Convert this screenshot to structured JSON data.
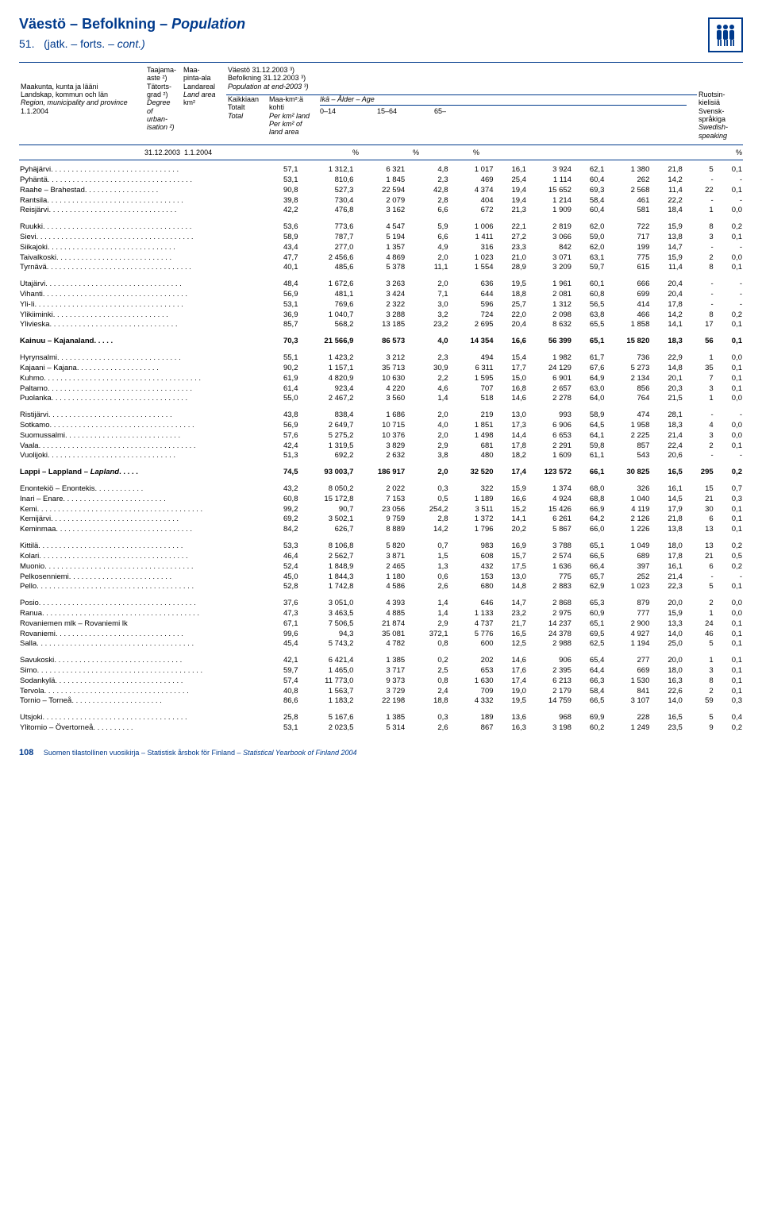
{
  "header": {
    "title_fi": "Väestö",
    "title_sv": "Befolkning",
    "title_en": "Population",
    "sub_num": "51.",
    "sub_fi": "(jatk.",
    "sub_sv": "forts.",
    "sub_en": "cont.)",
    "dash": "–"
  },
  "col_headers": {
    "left1": "Maakunta, kunta ja lääni",
    "left2": "Landskap, kommun och län",
    "left3": "Region, municipality and province",
    "left4": "1.1.2004",
    "c2_1": "Taajama-",
    "c2_2": "aste ²)",
    "c2_3": "Tätorts-",
    "c2_4": "grad ²)",
    "c2_5": "Degree",
    "c2_6": "of",
    "c2_7": "urban-",
    "c2_8": "isation ²)",
    "c3_1": "Maa-",
    "c3_2": "pinta-ala",
    "c3_3": "Landareal",
    "c3_4": "Land area",
    "c3_5": "km²",
    "c4_top1": "Väestö 31.12.2003 ³)",
    "c4_top2": "Befolkning 31.12.2003 ³)",
    "c4_top3": "Population at end-2003 ³)",
    "c4_1": "Kaikkiaan",
    "c4_2": "Totalt",
    "c4_3": "Total",
    "c5_1": "Maa-km²:ä",
    "c5_2": "kohti",
    "c5_3": "Per km² land",
    "c5_4": "Per km² of",
    "c5_5": "land area",
    "age_label": "Ikä – Ålder – Age",
    "age_0": "0–14",
    "age_15": "15–64",
    "age_65": "65–",
    "right_1": "Ruotsin-",
    "right_2": "kielisiä",
    "right_3": "Svensk-",
    "right_4": "språkiga",
    "right_5": "Swedish-",
    "right_6": "speaking",
    "date_left": "31.12.2003",
    "date_right": "1.1.2004",
    "pct": "%"
  },
  "colwidths": [
    "155",
    "38",
    "52",
    "48",
    "40",
    "42",
    "30",
    "42",
    "30",
    "42",
    "30",
    "28",
    "26"
  ],
  "blocks": [
    {
      "rows": [
        {
          "name": "Pyhäjärvi",
          "v": [
            "57,1",
            "1 312,1",
            "6 321",
            "4,8",
            "1 017",
            "16,1",
            "3 924",
            "62,1",
            "1 380",
            "21,8",
            "5",
            "0,1"
          ]
        },
        {
          "name": "Pyhäntä",
          "v": [
            "53,1",
            "810,6",
            "1 845",
            "2,3",
            "469",
            "25,4",
            "1 114",
            "60,4",
            "262",
            "14,2",
            "-",
            "-"
          ]
        },
        {
          "name": "Raahe – Brahestad",
          "v": [
            "90,8",
            "527,3",
            "22 594",
            "42,8",
            "4 374",
            "19,4",
            "15 652",
            "69,3",
            "2 568",
            "11,4",
            "22",
            "0,1"
          ]
        },
        {
          "name": "Rantsila",
          "v": [
            "39,8",
            "730,4",
            "2 079",
            "2,8",
            "404",
            "19,4",
            "1 214",
            "58,4",
            "461",
            "22,2",
            "-",
            "-"
          ]
        },
        {
          "name": "Reisjärvi",
          "v": [
            "42,2",
            "476,8",
            "3 162",
            "6,6",
            "672",
            "21,3",
            "1 909",
            "60,4",
            "581",
            "18,4",
            "1",
            "0,0"
          ]
        }
      ]
    },
    {
      "rows": [
        {
          "name": "Ruukki",
          "v": [
            "53,6",
            "773,6",
            "4 547",
            "5,9",
            "1 006",
            "22,1",
            "2 819",
            "62,0",
            "722",
            "15,9",
            "8",
            "0,2"
          ]
        },
        {
          "name": "Sievi",
          "v": [
            "58,9",
            "787,7",
            "5 194",
            "6,6",
            "1 411",
            "27,2",
            "3 066",
            "59,0",
            "717",
            "13,8",
            "3",
            "0,1"
          ]
        },
        {
          "name": "Siikajoki",
          "v": [
            "43,4",
            "277,0",
            "1 357",
            "4,9",
            "316",
            "23,3",
            "842",
            "62,0",
            "199",
            "14,7",
            "-",
            "-"
          ]
        },
        {
          "name": "Taivalkoski",
          "v": [
            "47,7",
            "2 456,6",
            "4 869",
            "2,0",
            "1 023",
            "21,0",
            "3 071",
            "63,1",
            "775",
            "15,9",
            "2",
            "0,0"
          ]
        },
        {
          "name": "Tyrnävä",
          "v": [
            "40,1",
            "485,6",
            "5 378",
            "11,1",
            "1 554",
            "28,9",
            "3 209",
            "59,7",
            "615",
            "11,4",
            "8",
            "0,1"
          ]
        }
      ]
    },
    {
      "rows": [
        {
          "name": "Utajärvi",
          "v": [
            "48,4",
            "1 672,6",
            "3 263",
            "2,0",
            "636",
            "19,5",
            "1 961",
            "60,1",
            "666",
            "20,4",
            "-",
            "-"
          ]
        },
        {
          "name": "Vihanti",
          "v": [
            "56,9",
            "481,1",
            "3 424",
            "7,1",
            "644",
            "18,8",
            "2 081",
            "60,8",
            "699",
            "20,4",
            "-",
            "-"
          ]
        },
        {
          "name": "Yli-Ii",
          "v": [
            "53,1",
            "769,6",
            "2 322",
            "3,0",
            "596",
            "25,7",
            "1 312",
            "56,5",
            "414",
            "17,8",
            "-",
            "-"
          ]
        },
        {
          "name": "Ylikiiminki",
          "v": [
            "36,9",
            "1 040,7",
            "3 288",
            "3,2",
            "724",
            "22,0",
            "2 098",
            "63,8",
            "466",
            "14,2",
            "8",
            "0,2"
          ]
        },
        {
          "name": "Ylivieska",
          "v": [
            "85,7",
            "568,2",
            "13 185",
            "23,2",
            "2 695",
            "20,4",
            "8 632",
            "65,5",
            "1 858",
            "14,1",
            "17",
            "0,1"
          ]
        }
      ]
    },
    {
      "bold": true,
      "rows": [
        {
          "name": "Kainuu – Kajanaland",
          "v": [
            "70,3",
            "21 566,9",
            "86 573",
            "4,0",
            "14 354",
            "16,6",
            "56 399",
            "65,1",
            "15 820",
            "18,3",
            "56",
            "0,1"
          ]
        }
      ]
    },
    {
      "rows": [
        {
          "name": "Hyrynsalmi",
          "v": [
            "55,1",
            "1 423,2",
            "3 212",
            "2,3",
            "494",
            "15,4",
            "1 982",
            "61,7",
            "736",
            "22,9",
            "1",
            "0,0"
          ]
        },
        {
          "name": "Kajaani – Kajana",
          "v": [
            "90,2",
            "1 157,1",
            "35 713",
            "30,9",
            "6 311",
            "17,7",
            "24 129",
            "67,6",
            "5 273",
            "14,8",
            "35",
            "0,1"
          ]
        },
        {
          "name": "Kuhmo",
          "v": [
            "61,9",
            "4 820,9",
            "10 630",
            "2,2",
            "1 595",
            "15,0",
            "6 901",
            "64,9",
            "2 134",
            "20,1",
            "7",
            "0,1"
          ]
        },
        {
          "name": "Paltamo",
          "v": [
            "61,4",
            "923,4",
            "4 220",
            "4,6",
            "707",
            "16,8",
            "2 657",
            "63,0",
            "856",
            "20,3",
            "3",
            "0,1"
          ]
        },
        {
          "name": "Puolanka",
          "v": [
            "55,0",
            "2 467,2",
            "3 560",
            "1,4",
            "518",
            "14,6",
            "2 278",
            "64,0",
            "764",
            "21,5",
            "1",
            "0,0"
          ]
        }
      ]
    },
    {
      "rows": [
        {
          "name": "Ristijärvi",
          "v": [
            "43,8",
            "838,4",
            "1 686",
            "2,0",
            "219",
            "13,0",
            "993",
            "58,9",
            "474",
            "28,1",
            "-",
            "-"
          ]
        },
        {
          "name": "Sotkamo",
          "v": [
            "56,9",
            "2 649,7",
            "10 715",
            "4,0",
            "1 851",
            "17,3",
            "6 906",
            "64,5",
            "1 958",
            "18,3",
            "4",
            "0,0"
          ]
        },
        {
          "name": "Suomussalmi",
          "v": [
            "57,6",
            "5 275,2",
            "10 376",
            "2,0",
            "1 498",
            "14,4",
            "6 653",
            "64,1",
            "2 225",
            "21,4",
            "3",
            "0,0"
          ]
        },
        {
          "name": "Vaala",
          "v": [
            "42,4",
            "1 319,5",
            "3 829",
            "2,9",
            "681",
            "17,8",
            "2 291",
            "59,8",
            "857",
            "22,4",
            "2",
            "0,1"
          ]
        },
        {
          "name": "Vuolijoki",
          "v": [
            "51,3",
            "692,2",
            "2 632",
            "3,8",
            "480",
            "18,2",
            "1 609",
            "61,1",
            "543",
            "20,6",
            "-",
            "-"
          ]
        }
      ]
    },
    {
      "bold": true,
      "rows": [
        {
          "name": "Lappi – Lappland – Lapland",
          "italic_last": true,
          "v": [
            "74,5",
            "93 003,7",
            "186 917",
            "2,0",
            "32 520",
            "17,4",
            "123 572",
            "66,1",
            "30 825",
            "16,5",
            "295",
            "0,2"
          ]
        }
      ]
    },
    {
      "rows": [
        {
          "name": "Enontekiö – Enontekis",
          "v": [
            "43,2",
            "8 050,2",
            "2 022",
            "0,3",
            "322",
            "15,9",
            "1 374",
            "68,0",
            "326",
            "16,1",
            "15",
            "0,7"
          ]
        },
        {
          "name": "Inari – Enare",
          "v": [
            "60,8",
            "15 172,8",
            "7 153",
            "0,5",
            "1 189",
            "16,6",
            "4 924",
            "68,8",
            "1 040",
            "14,5",
            "21",
            "0,3"
          ]
        },
        {
          "name": "Kemi",
          "v": [
            "99,2",
            "90,7",
            "23 056",
            "254,2",
            "3 511",
            "15,2",
            "15 426",
            "66,9",
            "4 119",
            "17,9",
            "30",
            "0,1"
          ]
        },
        {
          "name": "Kemijärvi",
          "v": [
            "69,2",
            "3 502,1",
            "9 759",
            "2,8",
            "1 372",
            "14,1",
            "6 261",
            "64,2",
            "2 126",
            "21,8",
            "6",
            "0,1"
          ]
        },
        {
          "name": "Keminmaa",
          "v": [
            "84,2",
            "626,7",
            "8 889",
            "14,2",
            "1 796",
            "20,2",
            "5 867",
            "66,0",
            "1 226",
            "13,8",
            "13",
            "0,1"
          ]
        }
      ]
    },
    {
      "rows": [
        {
          "name": "Kittilä",
          "v": [
            "53,3",
            "8 106,8",
            "5 820",
            "0,7",
            "983",
            "16,9",
            "3 788",
            "65,1",
            "1 049",
            "18,0",
            "13",
            "0,2"
          ]
        },
        {
          "name": "Kolari",
          "v": [
            "46,4",
            "2 562,7",
            "3 871",
            "1,5",
            "608",
            "15,7",
            "2 574",
            "66,5",
            "689",
            "17,8",
            "21",
            "0,5"
          ]
        },
        {
          "name": "Muonio",
          "v": [
            "52,4",
            "1 848,9",
            "2 465",
            "1,3",
            "432",
            "17,5",
            "1 636",
            "66,4",
            "397",
            "16,1",
            "6",
            "0,2"
          ]
        },
        {
          "name": "Pelkosenniemi",
          "v": [
            "45,0",
            "1 844,3",
            "1 180",
            "0,6",
            "153",
            "13,0",
            "775",
            "65,7",
            "252",
            "21,4",
            "-",
            "-"
          ]
        },
        {
          "name": "Pello",
          "v": [
            "52,8",
            "1 742,8",
            "4 586",
            "2,6",
            "680",
            "14,8",
            "2 883",
            "62,9",
            "1 023",
            "22,3",
            "5",
            "0,1"
          ]
        }
      ]
    },
    {
      "rows": [
        {
          "name": "Posio",
          "v": [
            "37,6",
            "3 051,0",
            "4 393",
            "1,4",
            "646",
            "14,7",
            "2 868",
            "65,3",
            "879",
            "20,0",
            "2",
            "0,0"
          ]
        },
        {
          "name": "Ranua",
          "v": [
            "47,3",
            "3 463,5",
            "4 885",
            "1,4",
            "1 133",
            "23,2",
            "2 975",
            "60,9",
            "777",
            "15,9",
            "1",
            "0,0"
          ]
        },
        {
          "name": "Rovaniemen mlk – Rovaniemi lk",
          "v": [
            "67,1",
            "7 506,5",
            "21 874",
            "2,9",
            "4 737",
            "21,7",
            "14 237",
            "65,1",
            "2 900",
            "13,3",
            "24",
            "0,1"
          ]
        },
        {
          "name": "Rovaniemi",
          "v": [
            "99,6",
            "94,3",
            "35 081",
            "372,1",
            "5 776",
            "16,5",
            "24 378",
            "69,5",
            "4 927",
            "14,0",
            "46",
            "0,1"
          ]
        },
        {
          "name": "Salla",
          "v": [
            "45,4",
            "5 743,2",
            "4 782",
            "0,8",
            "600",
            "12,5",
            "2 988",
            "62,5",
            "1 194",
            "25,0",
            "5",
            "0,1"
          ]
        }
      ]
    },
    {
      "rows": [
        {
          "name": "Savukoski",
          "v": [
            "42,1",
            "6 421,4",
            "1 385",
            "0,2",
            "202",
            "14,6",
            "906",
            "65,4",
            "277",
            "20,0",
            "1",
            "0,1"
          ]
        },
        {
          "name": "Simo",
          "v": [
            "59,7",
            "1 465,0",
            "3 717",
            "2,5",
            "653",
            "17,6",
            "2 395",
            "64,4",
            "669",
            "18,0",
            "3",
            "0,1"
          ]
        },
        {
          "name": "Sodankylä",
          "v": [
            "57,4",
            "11 773,0",
            "9 373",
            "0,8",
            "1 630",
            "17,4",
            "6 213",
            "66,3",
            "1 530",
            "16,3",
            "8",
            "0,1"
          ]
        },
        {
          "name": "Tervola",
          "v": [
            "40,8",
            "1 563,7",
            "3 729",
            "2,4",
            "709",
            "19,0",
            "2 179",
            "58,4",
            "841",
            "22,6",
            "2",
            "0,1"
          ]
        },
        {
          "name": "Tornio – Torneå",
          "v": [
            "86,6",
            "1 183,2",
            "22 198",
            "18,8",
            "4 332",
            "19,5",
            "14 759",
            "66,5",
            "3 107",
            "14,0",
            "59",
            "0,3"
          ]
        }
      ]
    },
    {
      "rows": [
        {
          "name": "Utsjoki",
          "v": [
            "25,8",
            "5 167,6",
            "1 385",
            "0,3",
            "189",
            "13,6",
            "968",
            "69,9",
            "228",
            "16,5",
            "5",
            "0,4"
          ]
        },
        {
          "name": "Ylitornio – Övertorneå",
          "v": [
            "53,1",
            "2 023,5",
            "5 314",
            "2,6",
            "867",
            "16,3",
            "3 198",
            "60,2",
            "1 249",
            "23,5",
            "9",
            "0,2"
          ]
        }
      ]
    }
  ],
  "footer": {
    "page": "108",
    "fi": "Suomen tilastollinen vuosikirja",
    "sv": "Statistisk årsbok för Finland",
    "en": "Statistical Yearbook of Finland 2004",
    "dash": "–"
  }
}
